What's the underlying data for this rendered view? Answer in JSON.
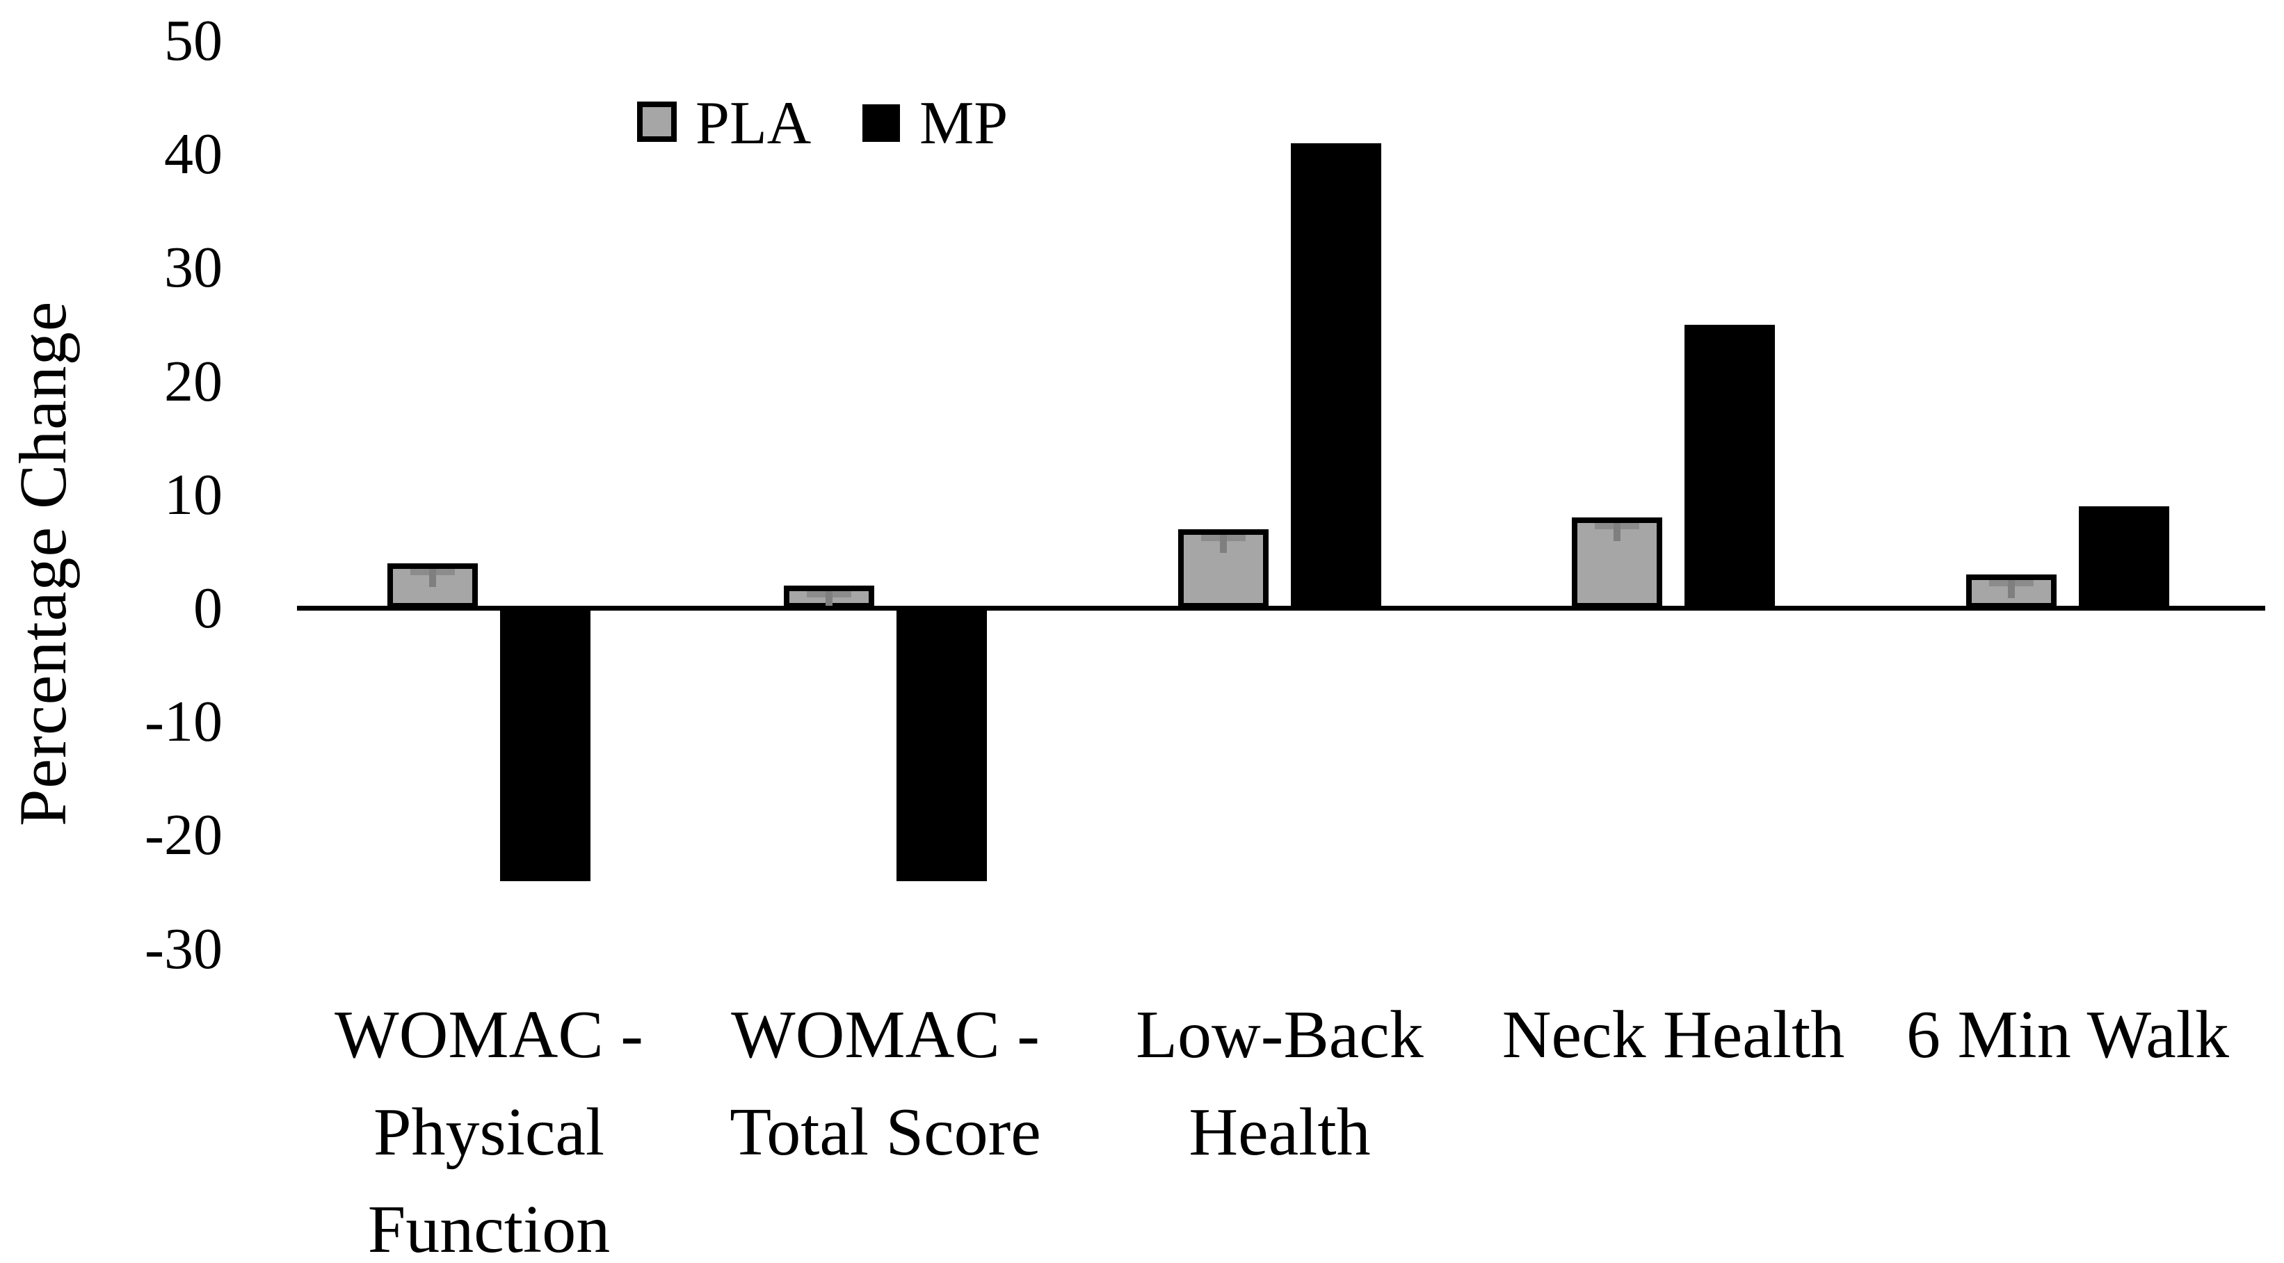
{
  "figure": {
    "background": "#ffffff",
    "text_color": "#000000"
  },
  "y_axis": {
    "title": "Percentage Change",
    "tick_labels": [
      "50",
      "40",
      "30",
      "20",
      "10",
      "0",
      "-10",
      "-20",
      "-30"
    ]
  },
  "legend": {
    "items": [
      {
        "label": "PLA",
        "swatch_fill": "#a6a6a6",
        "swatch_border": "#000000"
      },
      {
        "label": "MP",
        "swatch_fill": "#000000",
        "swatch_border": "#000000"
      }
    ]
  },
  "chart_data": {
    "type": "bar",
    "title": "",
    "xlabel": "",
    "ylabel": "Percentage Change",
    "categories": [
      "WOMAC - Physical Function",
      "WOMAC - Total Score",
      "Low-Back Health",
      "Neck Health",
      "6 Min Walk"
    ],
    "categories_wrapped": [
      [
        "WOMAC -",
        "Physical",
        "Function"
      ],
      [
        "WOMAC -",
        "Total Score"
      ],
      [
        "Low-Back",
        "Health"
      ],
      [
        "Neck Health"
      ],
      [
        "6 Min Walk"
      ]
    ],
    "series": [
      {
        "name": "PLA",
        "color": "#a6a6a6",
        "values": [
          4,
          2,
          7,
          8,
          3
        ]
      },
      {
        "name": "MP",
        "color": "#000000",
        "values": [
          -24,
          -24,
          41,
          25,
          9
        ]
      }
    ],
    "ylim": [
      -30,
      50
    ],
    "ytick_step": 10,
    "yticks": [
      50,
      40,
      30,
      20,
      10,
      0,
      -10,
      -20,
      -30
    ],
    "grid": false,
    "legend_position": "top-inside-left-of-plot",
    "error_bars_visible_on": "PLA"
  }
}
